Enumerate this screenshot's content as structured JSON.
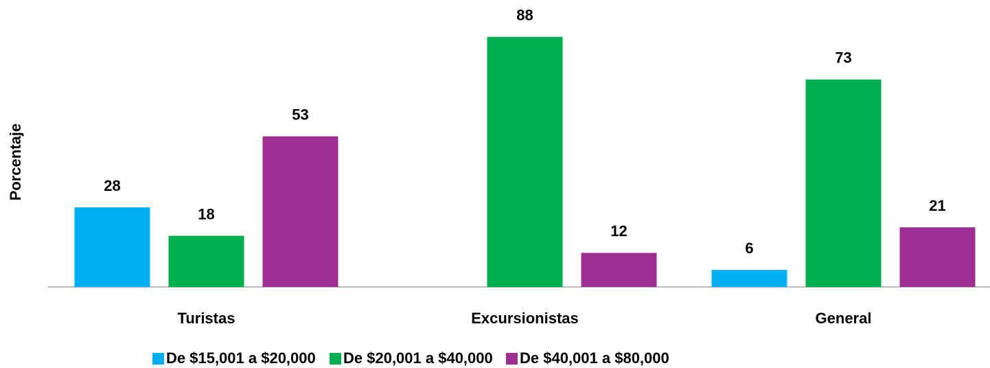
{
  "chart_data": {
    "type": "bar",
    "y_label": "Porcentaje",
    "categories": [
      "Turistas",
      "Excursionistas",
      "General"
    ],
    "series": [
      {
        "name": "De $15,001 a $20,000",
        "color": "#00b0f0",
        "values": [
          28,
          null,
          6
        ]
      },
      {
        "name": "De $20,001 a $40,000",
        "color": "#00b050",
        "values": [
          18,
          88,
          73
        ]
      },
      {
        "name": "De $40,001 a $80,000",
        "color": "#9e2f92",
        "values": [
          53,
          12,
          21
        ]
      }
    ],
    "ylim": [
      0,
      100
    ]
  }
}
